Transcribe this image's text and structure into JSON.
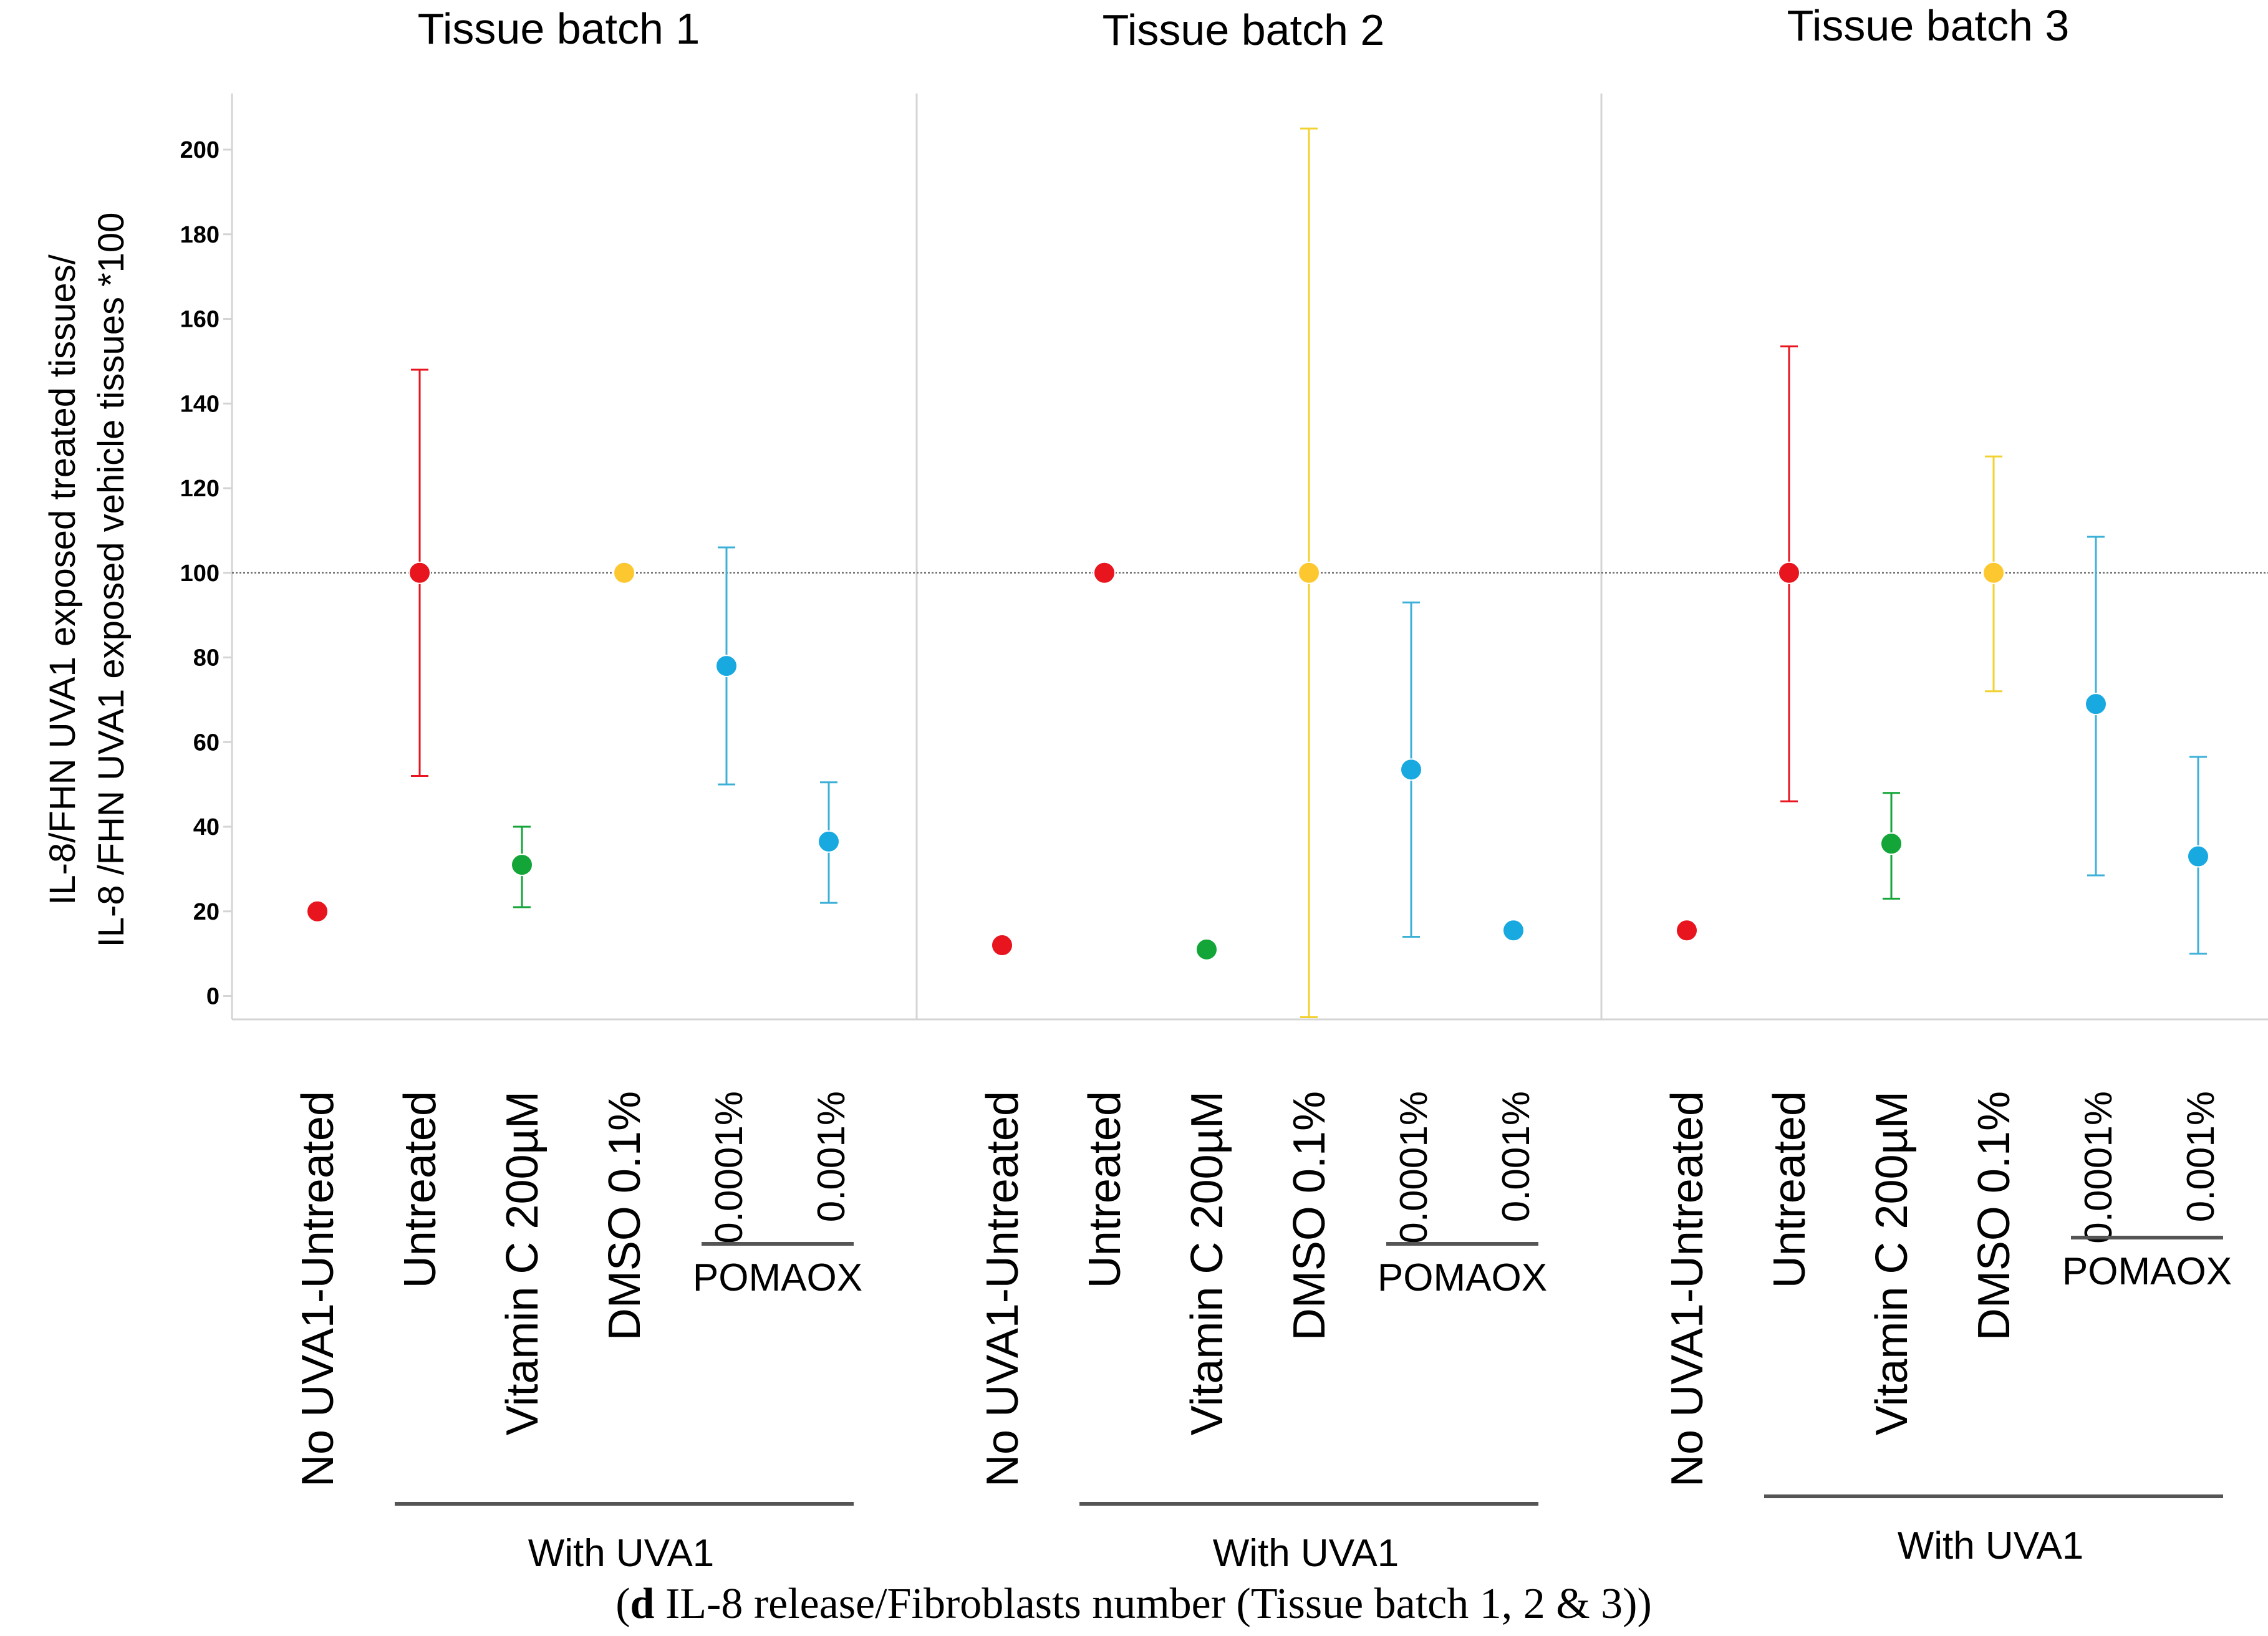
{
  "chart_data": {
    "type": "scatter",
    "title": "",
    "ylabel_line1": "IL-8/FHN UVA1 exposed treated tissues/",
    "ylabel_line2": "IL-8 /FHN UVA1 exposed vehicle tissues *100",
    "ylim": [
      -5,
      213
    ],
    "yticks": [
      0,
      20,
      40,
      60,
      80,
      100,
      120,
      140,
      160,
      180,
      200
    ],
    "reference_line": 100,
    "grid": false,
    "categories": [
      "No UVA1-Untreated",
      "Untreated",
      "Vitamin C 200µM",
      "DMSO 0.1%",
      "0.0001%",
      "0.001%"
    ],
    "pomaox_label": "POMAOX",
    "group_label": "With UVA1",
    "colors": {
      "No UVA1-Untreated": "#e8141e",
      "Untreated": "#e8141e",
      "Vitamin C 200µM": "#13a538",
      "DMSO 0.1%": "#fdc82f",
      "0.0001%": "#18a9e1",
      "0.001%": "#18a9e1",
      "error_yellow": "#f2d230",
      "error_blue": "#3db0d8"
    },
    "batches": [
      {
        "title": "Tissue batch 1",
        "points": [
          {
            "category": "No UVA1-Untreated",
            "y": 20,
            "low": null,
            "high": null
          },
          {
            "category": "Untreated",
            "y": 100,
            "low": 52,
            "high": 148
          },
          {
            "category": "Vitamin C 200µM",
            "y": 31,
            "low": 21,
            "high": 40
          },
          {
            "category": "DMSO 0.1%",
            "y": 100,
            "low": null,
            "high": null
          },
          {
            "category": "0.0001%",
            "y": 78,
            "low": 50,
            "high": 106
          },
          {
            "category": "0.001%",
            "y": 36.5,
            "low": 22,
            "high": 50.5
          }
        ]
      },
      {
        "title": "Tissue batch 2",
        "points": [
          {
            "category": "No UVA1-Untreated",
            "y": 12,
            "low": 11,
            "high": 13
          },
          {
            "category": "Untreated",
            "y": 100,
            "low": null,
            "high": null
          },
          {
            "category": "Vitamin C 200µM",
            "y": 11,
            "low": null,
            "high": null
          },
          {
            "category": "DMSO 0.1%",
            "y": 100,
            "low": -5,
            "high": 205
          },
          {
            "category": "0.0001%",
            "y": 53.5,
            "low": 14,
            "high": 93
          },
          {
            "category": "0.001%",
            "y": 15.5,
            "low": null,
            "high": null
          }
        ]
      },
      {
        "title": "Tissue batch 3",
        "points": [
          {
            "category": "No UVA1-Untreated",
            "y": 15.5,
            "low": null,
            "high": null
          },
          {
            "category": "Untreated",
            "y": 100,
            "low": 46,
            "high": 153.5
          },
          {
            "category": "Vitamin C 200µM",
            "y": 36,
            "low": 23,
            "high": 48
          },
          {
            "category": "DMSO 0.1%",
            "y": 100,
            "low": 72,
            "high": 127.5
          },
          {
            "category": "0.0001%",
            "y": 69,
            "low": 28.5,
            "high": 108.5
          },
          {
            "category": "0.001%",
            "y": 33,
            "low": 10,
            "high": 56.5
          }
        ]
      }
    ]
  },
  "caption": {
    "letter": "d",
    "text": " IL-8 release/Fibroblasts number (Tissue batch 1, 2 & 3)"
  }
}
